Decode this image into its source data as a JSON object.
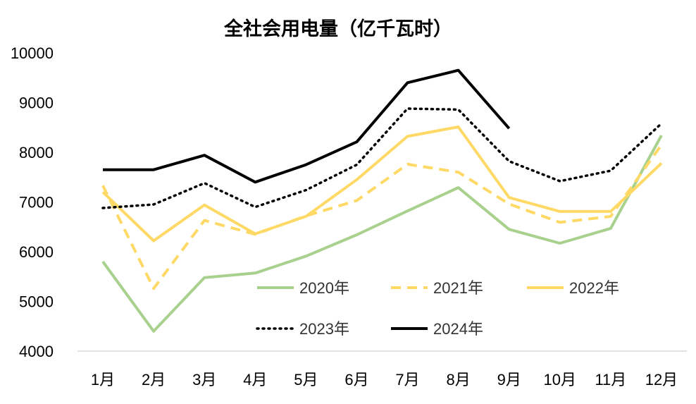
{
  "chart_data": {
    "type": "line",
    "title": "全社会用电量（亿千瓦时）",
    "xlabel": "",
    "ylabel": "",
    "categories": [
      "1月",
      "2月",
      "3月",
      "4月",
      "5月",
      "6月",
      "7月",
      "8月",
      "9月",
      "10月",
      "11月",
      "12月"
    ],
    "ylim": [
      4000,
      10000
    ],
    "yticks": [
      "4000",
      "5000",
      "6000",
      "7000",
      "8000",
      "9000",
      "10000"
    ],
    "grid": "baseline only",
    "legend_position": "inside-bottom-right",
    "series": [
      {
        "name": "2020年",
        "color": "#a9d18e",
        "style": "solid",
        "values": [
          5800,
          4400,
          5480,
          5570,
          5910,
          6340,
          6820,
          7290,
          6450,
          6170,
          6470,
          8340
        ]
      },
      {
        "name": "2021年",
        "color": "#ffd966",
        "style": "dashed",
        "values": [
          7330,
          5260,
          6630,
          6350,
          6720,
          7030,
          7760,
          7600,
          6960,
          6590,
          6710,
          8150
        ]
      },
      {
        "name": "2022年",
        "color": "#ffd966",
        "style": "solid",
        "values": [
          7200,
          6220,
          6940,
          6360,
          6710,
          7450,
          8320,
          8510,
          7090,
          6810,
          6810,
          7780
        ]
      },
      {
        "name": "2023年",
        "color": "#000000",
        "style": "dotted",
        "values": [
          6880,
          6950,
          7380,
          6900,
          7240,
          7750,
          8880,
          8860,
          7820,
          7420,
          7630,
          8580
        ]
      },
      {
        "name": "2024年",
        "color": "#000000",
        "style": "solid",
        "values": [
          7650,
          7650,
          7940,
          7400,
          7750,
          8210,
          9400,
          9650,
          8480,
          null,
          null,
          null
        ]
      }
    ]
  }
}
